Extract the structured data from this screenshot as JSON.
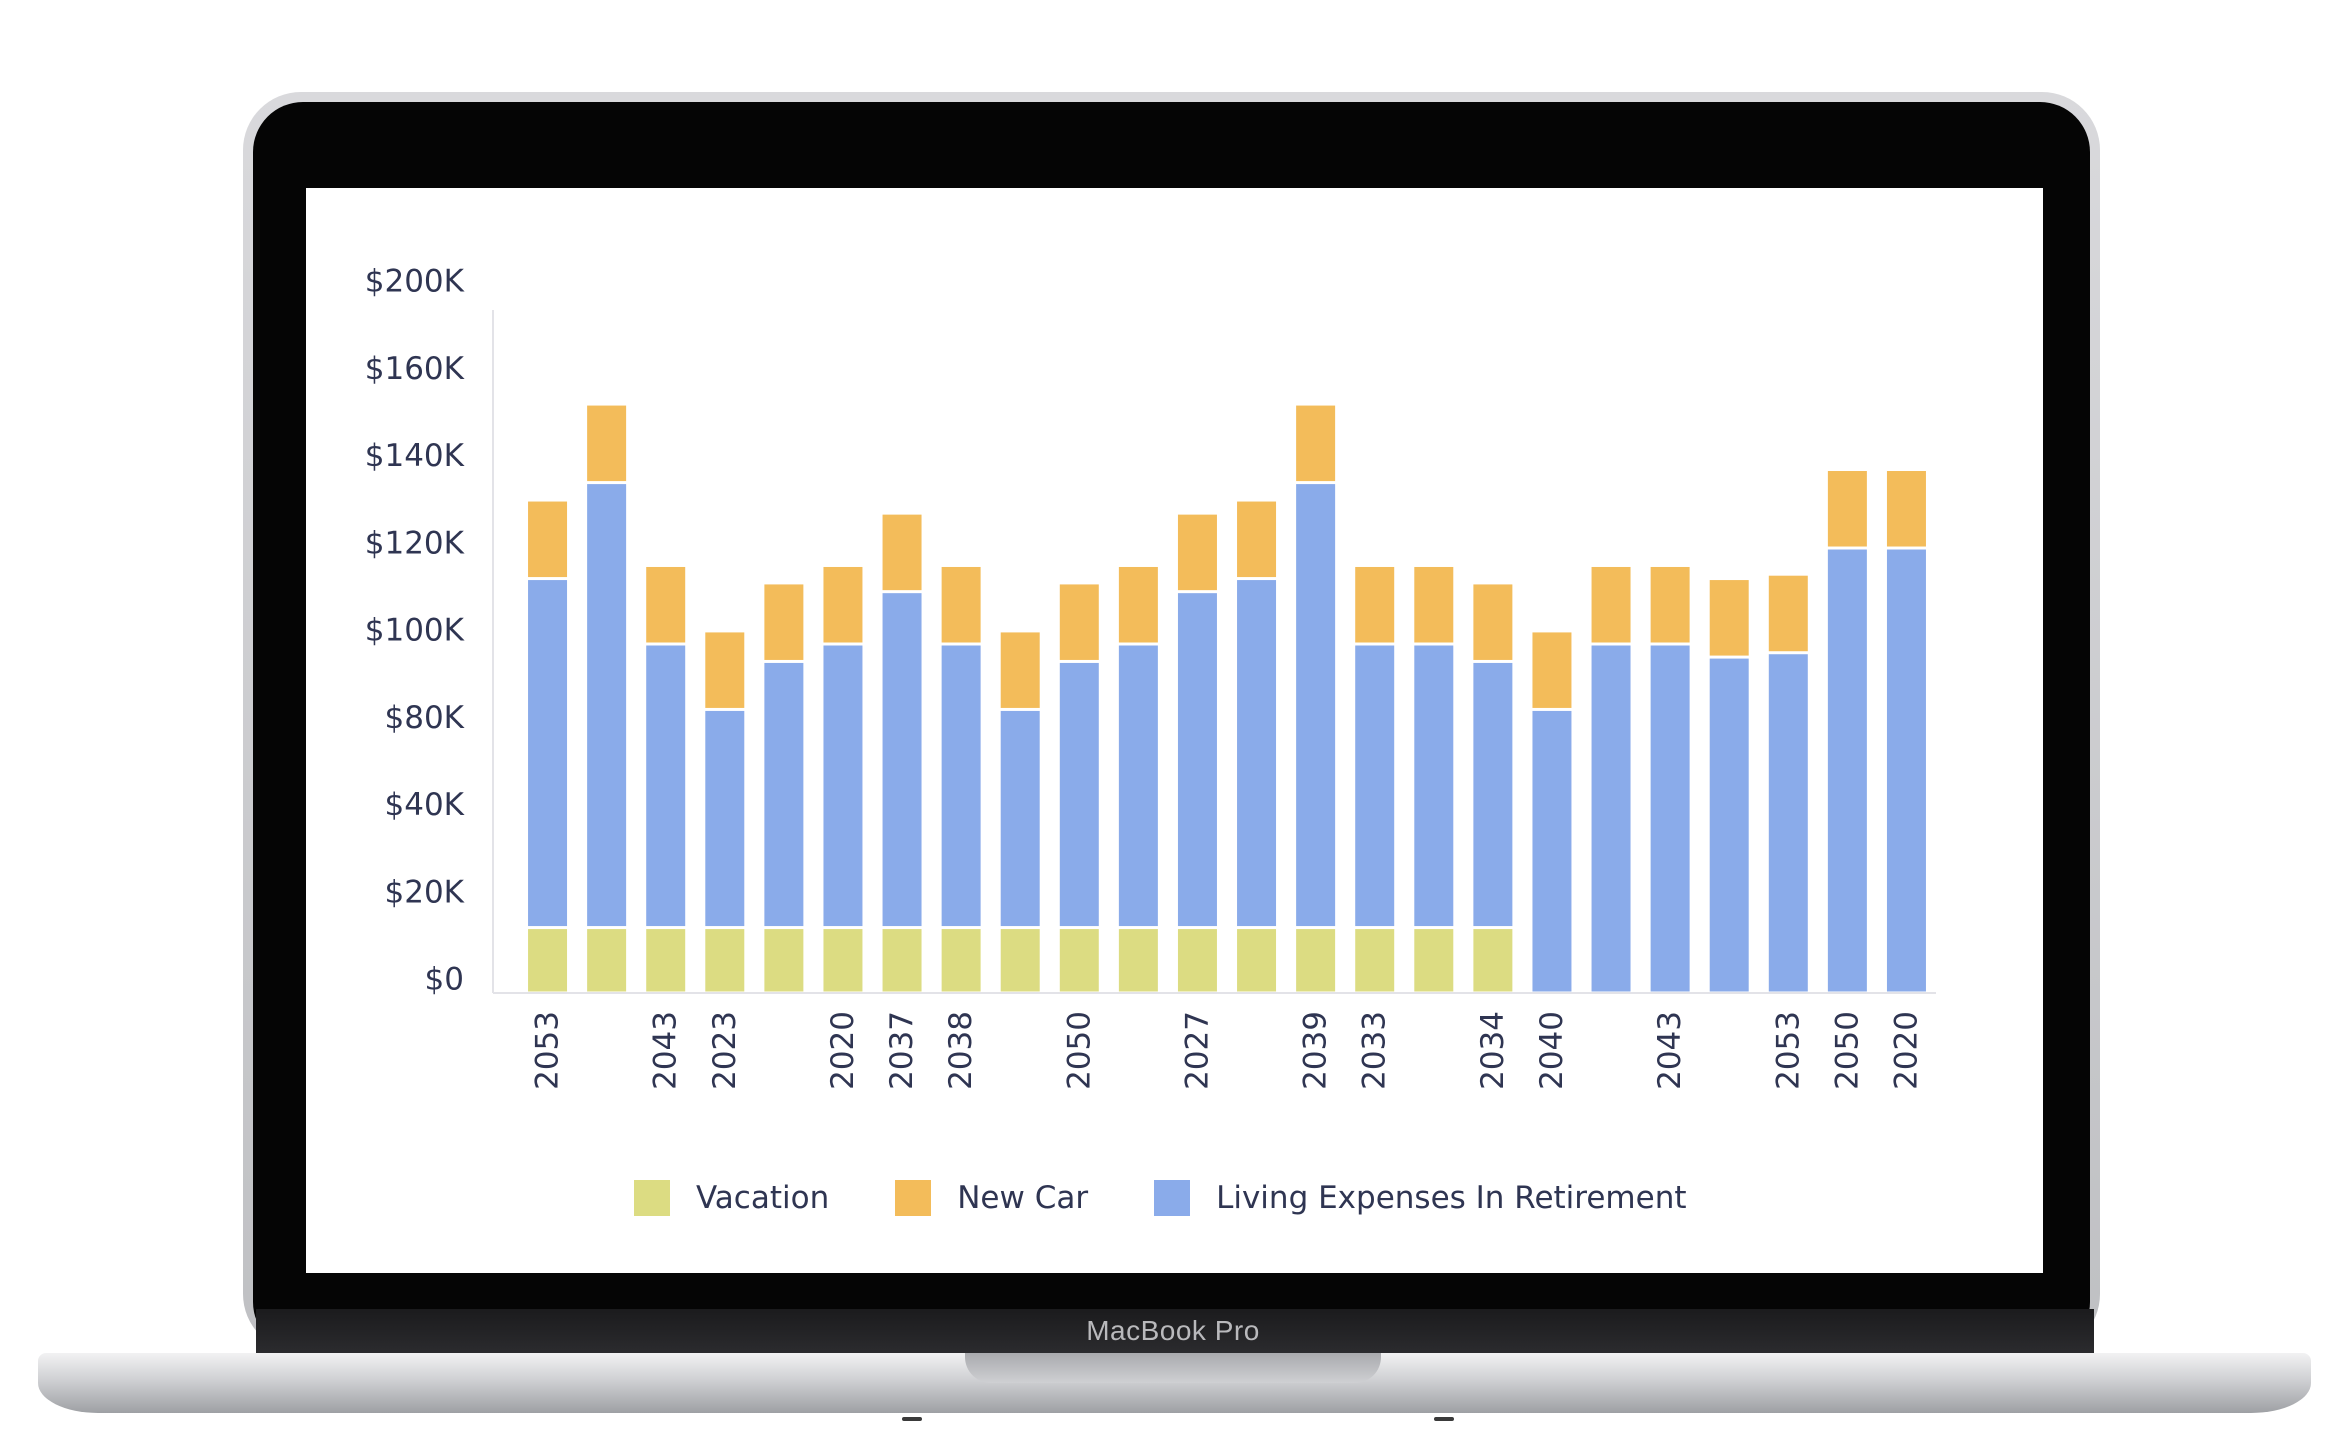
{
  "device": {
    "label": "MacBook Pro"
  },
  "colors": {
    "vacation": "#dcdc82",
    "new_car": "#f3bc5a",
    "living": "#8aabea",
    "axis_text": "#2f3552",
    "axis_line": "#e3e3e8"
  },
  "legend": [
    {
      "key": "vacation",
      "label": "Vacation"
    },
    {
      "key": "new_car",
      "label": "New Car"
    },
    {
      "key": "living",
      "label": "Living Expenses In Retirement"
    }
  ],
  "chart_data": {
    "type": "bar",
    "stacked": true,
    "categories": [
      "2053",
      "2043",
      "2023",
      "2020",
      "2037",
      "2038",
      "2050",
      "2027",
      "2039",
      "2033",
      "2034",
      "2040",
      "2043",
      "2053",
      "2050",
      "2020"
    ],
    "bars": [
      {
        "year": "2053",
        "vacation": 15,
        "new_car": 18,
        "living": 100
      },
      {
        "year": "",
        "vacation": 15,
        "new_car": 18,
        "living": 122
      },
      {
        "year": "2043",
        "vacation": 15,
        "new_car": 18,
        "living": 85
      },
      {
        "year": "2023",
        "vacation": 15,
        "new_car": 18,
        "living": 70
      },
      {
        "year": "",
        "vacation": 15,
        "new_car": 18,
        "living": 81
      },
      {
        "year": "2020",
        "vacation": 15,
        "new_car": 18,
        "living": 85
      },
      {
        "year": "2037",
        "vacation": 15,
        "new_car": 18,
        "living": 97
      },
      {
        "year": "2038",
        "vacation": 15,
        "new_car": 18,
        "living": 85
      },
      {
        "year": "",
        "vacation": 15,
        "new_car": 18,
        "living": 70
      },
      {
        "year": "2050",
        "vacation": 15,
        "new_car": 18,
        "living": 81
      },
      {
        "year": "",
        "vacation": 15,
        "new_car": 18,
        "living": 85
      },
      {
        "year": "2027",
        "vacation": 15,
        "new_car": 18,
        "living": 97
      },
      {
        "year": "",
        "vacation": 15,
        "new_car": 18,
        "living": 100
      },
      {
        "year": "2039",
        "vacation": 15,
        "new_car": 18,
        "living": 122
      },
      {
        "year": "2033",
        "vacation": 15,
        "new_car": 18,
        "living": 85
      },
      {
        "year": "",
        "vacation": 15,
        "new_car": 18,
        "living": 85
      },
      {
        "year": "2034",
        "vacation": 15,
        "new_car": 18,
        "living": 81
      },
      {
        "year": "2040",
        "vacation": 0,
        "new_car": 18,
        "living": 85
      },
      {
        "year": "",
        "vacation": 0,
        "new_car": 18,
        "living": 100
      },
      {
        "year": "2043",
        "vacation": 0,
        "new_car": 18,
        "living": 100
      },
      {
        "year": "",
        "vacation": 0,
        "new_car": 18,
        "living": 97
      },
      {
        "year": "2053",
        "vacation": 0,
        "new_car": 18,
        "living": 98
      },
      {
        "year": "2050",
        "vacation": 0,
        "new_car": 18,
        "living": 122
      },
      {
        "year": "2020",
        "vacation": 0,
        "new_car": 18,
        "living": 122
      }
    ],
    "y_ticks": [
      "$0",
      "$20K",
      "$40K",
      "$80K",
      "$100K",
      "$120K",
      "$140K",
      "$160K",
      "$200K"
    ],
    "ylim_tick_index": [
      0,
      8
    ],
    "legend_position": "bottom",
    "grid": false
  }
}
